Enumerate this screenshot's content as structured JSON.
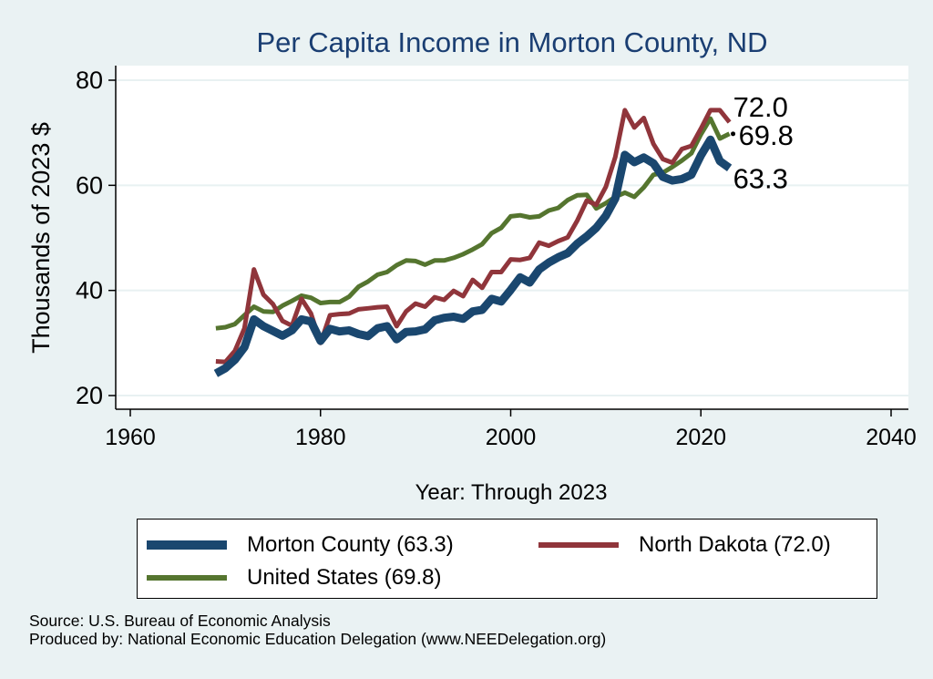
{
  "chart_data": {
    "type": "line",
    "title": "Per Capita Income in Morton County, ND",
    "xlabel": "Year: Through 2023",
    "ylabel": "Thousands of 2023 $",
    "xlim": [
      1960,
      2040
    ],
    "ylim": [
      20,
      80
    ],
    "xticks": [
      1960,
      1980,
      2000,
      2020,
      2040
    ],
    "yticks": [
      20,
      40,
      60,
      80
    ],
    "grid": true,
    "legend_position": "bottom",
    "x": [
      1969,
      1970,
      1971,
      1972,
      1973,
      1974,
      1975,
      1976,
      1977,
      1978,
      1979,
      1980,
      1981,
      1982,
      1983,
      1984,
      1985,
      1986,
      1987,
      1988,
      1989,
      1990,
      1991,
      1992,
      1993,
      1994,
      1995,
      1996,
      1997,
      1998,
      1999,
      2000,
      2001,
      2002,
      2003,
      2004,
      2005,
      2006,
      2007,
      2008,
      2009,
      2010,
      2011,
      2012,
      2013,
      2014,
      2015,
      2016,
      2017,
      2018,
      2019,
      2020,
      2021,
      2022,
      2023
    ],
    "series": [
      {
        "name": "Morton County",
        "legend_label": "Morton County (63.3)",
        "color": "#1a476f",
        "end_label": "63.3",
        "values": [
          24.2,
          25.2,
          26.8,
          29.2,
          34.5,
          33.2,
          32.3,
          31.4,
          32.4,
          34.5,
          34.1,
          30.4,
          32.7,
          32.2,
          32.4,
          31.7,
          31.3,
          32.8,
          33.2,
          30.7,
          32.1,
          32.2,
          32.6,
          34.3,
          34.8,
          35.0,
          34.6,
          36.0,
          36.3,
          38.4,
          37.9,
          40.1,
          42.5,
          41.5,
          44.0,
          45.3,
          46.3,
          47.1,
          48.9,
          50.3,
          51.9,
          54.2,
          57.5,
          65.8,
          64.4,
          65.3,
          64.2,
          61.6,
          60.9,
          61.2,
          62.0,
          65.7,
          68.7,
          64.6,
          63.3
        ]
      },
      {
        "name": "North Dakota",
        "legend_label": "North Dakota (72.0)",
        "color": "#90353b",
        "end_label": "72.0",
        "values": [
          26.5,
          26.4,
          28.5,
          32.8,
          44.0,
          39.2,
          37.4,
          34.2,
          33.3,
          38.4,
          35.6,
          30.0,
          35.3,
          35.5,
          35.6,
          36.4,
          36.6,
          36.8,
          36.9,
          33.2,
          36.0,
          37.5,
          36.9,
          38.7,
          38.2,
          39.9,
          38.9,
          42.0,
          40.5,
          43.5,
          43.5,
          45.9,
          45.8,
          46.2,
          49.1,
          48.5,
          49.4,
          50.1,
          53.3,
          57.1,
          56.3,
          59.7,
          65.4,
          74.3,
          71.0,
          72.8,
          67.9,
          65.0,
          64.3,
          66.9,
          67.5,
          70.8,
          74.3,
          74.3,
          72.0
        ]
      },
      {
        "name": "United States",
        "legend_label": "United States (69.8)",
        "color": "#55752f",
        "end_label": "69.8",
        "values": [
          32.8,
          33.0,
          33.6,
          35.3,
          36.9,
          36.0,
          35.9,
          37.1,
          38.0,
          39.0,
          38.6,
          37.6,
          37.8,
          37.8,
          38.8,
          40.7,
          41.7,
          43.0,
          43.5,
          44.8,
          45.7,
          45.6,
          44.9,
          45.7,
          45.7,
          46.2,
          46.9,
          47.8,
          48.8,
          50.9,
          51.9,
          54.1,
          54.3,
          53.9,
          54.1,
          55.2,
          55.7,
          57.2,
          58.1,
          58.2,
          55.6,
          56.6,
          57.8,
          58.6,
          57.8,
          59.6,
          62.0,
          62.4,
          63.5,
          64.7,
          66.1,
          69.7,
          72.7,
          68.9,
          69.8
        ]
      }
    ]
  },
  "footer": {
    "source": "Source: U.S. Bureau of Economic Analysis",
    "producer": "Produced by: National Economic Education Delegation (www.NEEDelegation.org)"
  }
}
